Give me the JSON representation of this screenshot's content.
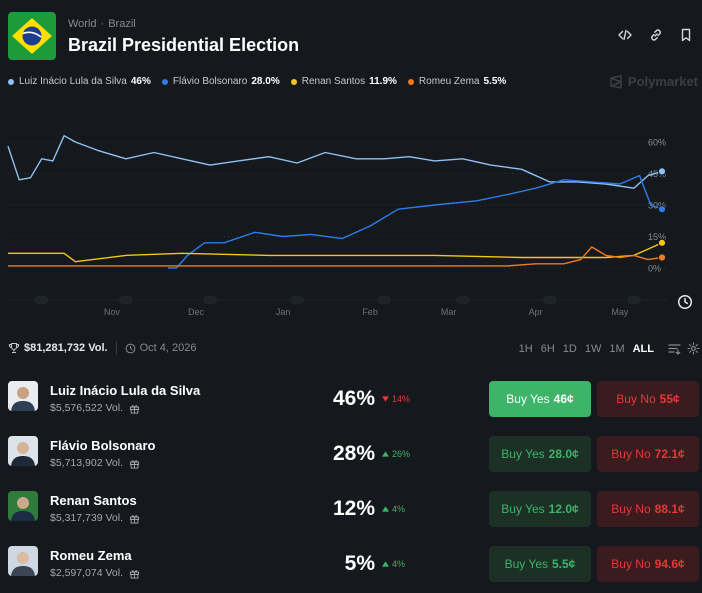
{
  "header": {
    "crumb_world": "World",
    "crumb_sep": "·",
    "crumb_country": "Brazil",
    "title": "Brazil Presidential Election",
    "icons": [
      "embed-icon",
      "link-icon",
      "bookmark-icon"
    ]
  },
  "legend": [
    {
      "name": "Luiz Inácio Lula da Silva",
      "value": "46%",
      "color": "#8ec1f4"
    },
    {
      "name": "Flávio Bolsonaro",
      "value": "28.0%",
      "color": "#2d7de8"
    },
    {
      "name": "Renan Santos",
      "value": "11.9%",
      "color": "#f5c518"
    },
    {
      "name": "Romeu Zema",
      "value": "5.5%",
      "color": "#f07b1f"
    }
  ],
  "watermark": "Polymarket",
  "chart_data": {
    "type": "line",
    "x_ticks": [
      "Nov",
      "Dec",
      "Jan",
      "Feb",
      "Mar",
      "Apr",
      "May"
    ],
    "y_ticks": [
      "60%",
      "45%",
      "30%",
      "15%",
      "0%"
    ],
    "ylim": [
      0,
      60
    ],
    "x_range": [
      "Oct 9",
      "May 30"
    ],
    "grid": "dotted horizontal",
    "series": [
      {
        "name": "Luiz Inácio Lula da Silva",
        "color": "#8ec1f4",
        "x": [
          "Oct 9",
          "Oct 13",
          "Oct 17",
          "Oct 21",
          "Oct 25",
          "Oct 29",
          "Nov 2",
          "Nov 10",
          "Nov 20",
          "Nov 30",
          "Dec 10",
          "Dec 20",
          "Dec 30",
          "Jan 10",
          "Jan 20",
          "Jan 30",
          "Feb 10",
          "Feb 20",
          "Mar 1",
          "Mar 10",
          "Mar 20",
          "Mar 30",
          "Apr 10",
          "Apr 20",
          "Apr 30",
          "May 10",
          "May 20",
          "May 25",
          "May 30"
        ],
        "y": [
          58,
          42,
          43,
          52,
          51,
          63,
          60,
          56,
          52,
          55,
          52,
          49,
          51,
          53,
          50,
          55,
          52,
          52,
          53,
          51,
          52,
          49,
          47,
          41,
          41,
          40,
          38,
          44,
          46
        ]
      },
      {
        "name": "Flávio Bolsonaro",
        "color": "#2d7de8",
        "x": [
          "Dec 5",
          "Dec 8",
          "Dec 12",
          "Dec 18",
          "Dec 25",
          "Jan 5",
          "Jan 15",
          "Jan 25",
          "Feb 5",
          "Feb 15",
          "Feb 25",
          "Mar 10",
          "Mar 25",
          "Apr 5",
          "Apr 15",
          "Apr 25",
          "May 5",
          "May 15",
          "May 22",
          "May 26",
          "May 30"
        ],
        "y": [
          0,
          0,
          6,
          12,
          12,
          17,
          15,
          16,
          14,
          20,
          28,
          30,
          32,
          35,
          38,
          42,
          41,
          40,
          44,
          30,
          28
        ]
      },
      {
        "name": "Renan Santos",
        "color": "#f5c518",
        "x": [
          "Oct 9",
          "Oct 29",
          "Nov 2",
          "Nov 20",
          "Dec 10",
          "Jan 10",
          "Feb 10",
          "Mar 10",
          "Apr 10",
          "May 10",
          "May 20",
          "May 25",
          "May 30"
        ],
        "y": [
          7,
          7,
          3,
          6,
          7,
          6,
          6,
          6,
          5,
          5,
          6,
          9,
          12
        ]
      },
      {
        "name": "Romeu Zema",
        "color": "#f07b1f",
        "x": [
          "Oct 9",
          "Apr 5",
          "Apr 15",
          "Apr 25",
          "May 1",
          "May 5",
          "May 10",
          "May 15",
          "May 20",
          "May 25",
          "May 30"
        ],
        "y": [
          1,
          1,
          2,
          2,
          4,
          10,
          6,
          5,
          6,
          4,
          5
        ]
      }
    ]
  },
  "summary": {
    "volume": "$81,281,732 Vol.",
    "date": "Oct 4, 2026",
    "ranges": [
      "1H",
      "6H",
      "1D",
      "1W",
      "1M",
      "ALL"
    ],
    "active_range": "ALL"
  },
  "outcomes": [
    {
      "name": "Luiz Inácio Lula da Silva",
      "volume": "$5,576,522 Vol.",
      "pct": "46%",
      "change": "14%",
      "direction": "down",
      "buy_yes_label": "Buy Yes",
      "buy_yes_price": "46¢",
      "buy_no_label": "Buy No",
      "buy_no_price": "55¢"
    },
    {
      "name": "Flávio Bolsonaro",
      "volume": "$5,713,902 Vol.",
      "pct": "28%",
      "change": "26%",
      "direction": "up",
      "buy_yes_label": "Buy Yes",
      "buy_yes_price": "28.0¢",
      "buy_no_label": "Buy No",
      "buy_no_price": "72.1¢"
    },
    {
      "name": "Renan Santos",
      "volume": "$5,317,739 Vol.",
      "pct": "12%",
      "change": "4%",
      "direction": "up",
      "buy_yes_label": "Buy Yes",
      "buy_yes_price": "12.0¢",
      "buy_no_label": "Buy No",
      "buy_no_price": "88.1¢"
    },
    {
      "name": "Romeu Zema",
      "volume": "$2,597,074 Vol.",
      "pct": "5%",
      "change": "4%",
      "direction": "up",
      "buy_yes_label": "Buy Yes",
      "buy_yes_price": "5.5¢",
      "buy_no_label": "Buy No",
      "buy_no_price": "94.6¢"
    }
  ]
}
